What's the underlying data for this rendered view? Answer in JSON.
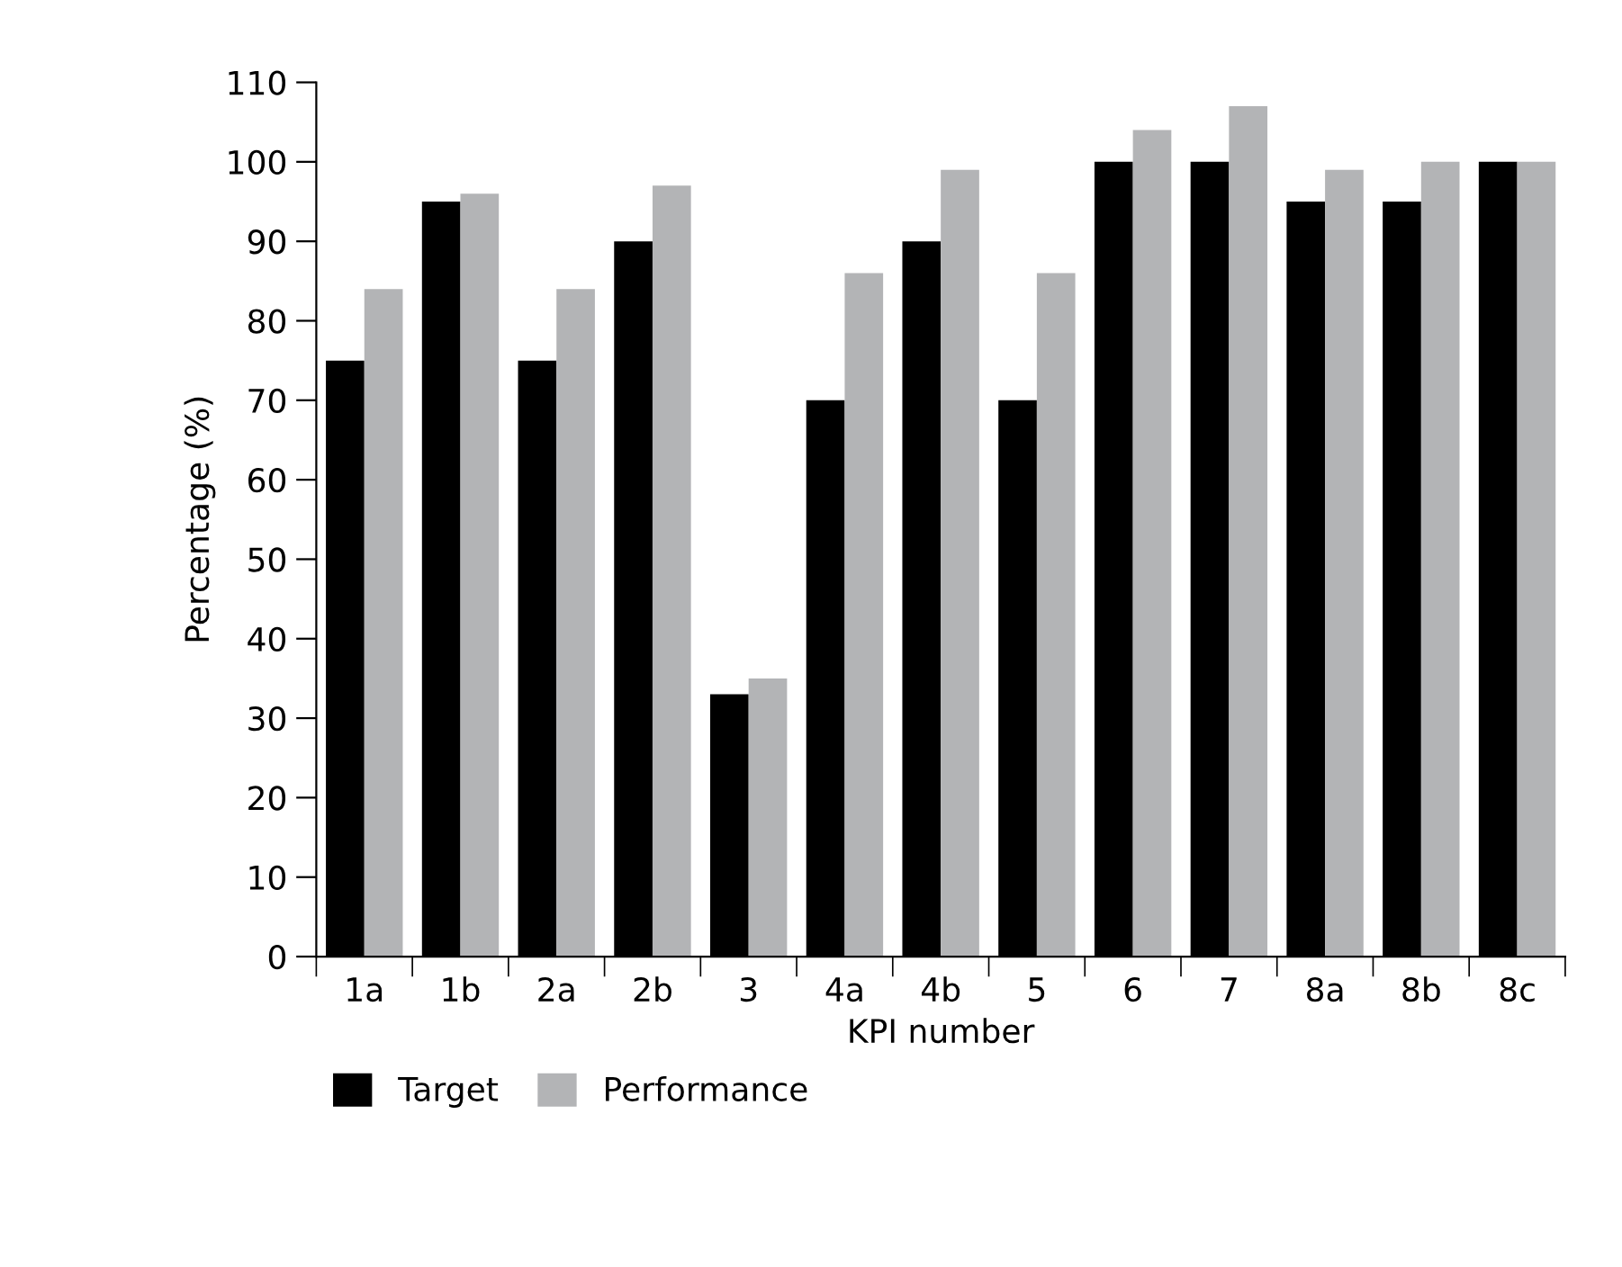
{
  "chart_data": {
    "type": "bar",
    "xlabel": "KPI number",
    "ylabel": "Percentage (%)",
    "categories": [
      "1a",
      "1b",
      "2a",
      "2b",
      "3",
      "4a",
      "4b",
      "5",
      "6",
      "7",
      "8a",
      "8b",
      "8c"
    ],
    "series": [
      {
        "name": "Target",
        "color": "#000000",
        "values": [
          75,
          95,
          75,
          90,
          33,
          70,
          90,
          70,
          100,
          100,
          95,
          95,
          100
        ]
      },
      {
        "name": "Performance",
        "color": "#b3b4b6",
        "values": [
          84,
          96,
          84,
          97,
          35,
          86,
          99,
          86,
          104,
          107,
          99,
          100,
          100
        ]
      }
    ],
    "ylim": [
      0,
      110
    ],
    "yticks": [
      0,
      10,
      20,
      30,
      40,
      50,
      60,
      70,
      80,
      90,
      100,
      110
    ],
    "grid": false,
    "legend": "bottom left"
  }
}
